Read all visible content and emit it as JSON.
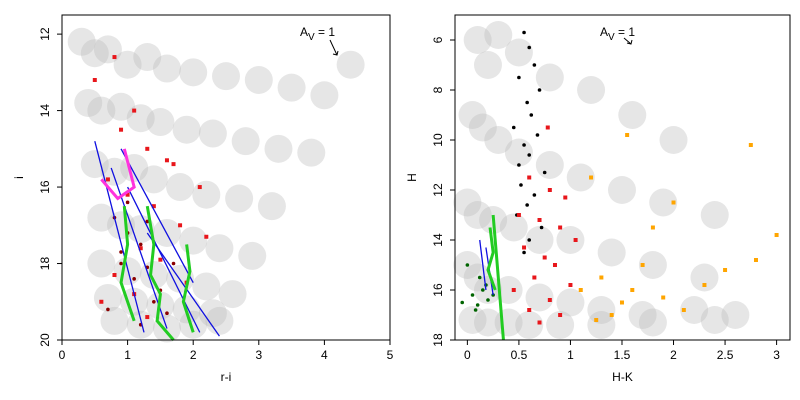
{
  "chart_data": [
    {
      "type": "scatter",
      "xlabel": "r-i",
      "ylabel": "i",
      "xlim": [
        0,
        5
      ],
      "ylim": [
        20,
        11.5
      ],
      "xticks": [
        0,
        1,
        2,
        3,
        4,
        5
      ],
      "yticks": [
        12,
        14,
        16,
        18,
        20
      ],
      "annotation": {
        "text": "A",
        "sub": "V",
        "rest": " = 1"
      },
      "series": [
        {
          "color": "#b8b8b8",
          "marker": "cloud",
          "x": [
            0.3,
            0.5,
            0.7,
            1.0,
            1.3,
            1.6,
            2.0,
            2.5,
            3.0,
            3.5,
            4.0,
            4.4,
            0.4,
            0.6,
            0.9,
            1.2,
            1.5,
            1.9,
            2.3,
            2.8,
            3.3,
            3.8,
            0.5,
            0.8,
            1.1,
            1.4,
            1.8,
            2.2,
            2.7,
            3.2,
            0.6,
            0.9,
            1.2,
            1.6,
            2.0,
            2.4,
            2.9,
            0.6,
            1.0,
            1.4,
            1.8,
            2.2,
            2.6,
            0.7,
            1.1,
            1.5,
            1.9,
            2.3,
            0.8,
            1.2,
            1.6,
            2.0,
            2.4
          ],
          "values": [
            12.2,
            12.5,
            12.4,
            12.8,
            12.6,
            12.9,
            13.0,
            13.1,
            13.2,
            13.4,
            13.6,
            12.8,
            13.8,
            14.0,
            13.9,
            14.2,
            14.3,
            14.5,
            14.6,
            14.8,
            15.0,
            15.1,
            15.4,
            15.6,
            15.5,
            15.8,
            16.0,
            16.2,
            16.3,
            16.5,
            16.8,
            17.0,
            17.1,
            17.2,
            17.4,
            17.6,
            17.8,
            18.0,
            18.2,
            18.3,
            18.4,
            18.6,
            18.8,
            18.9,
            19.0,
            19.1,
            19.2,
            19.3,
            19.5,
            19.6,
            19.7,
            19.6,
            19.5
          ]
        },
        {
          "color": "#e8161b",
          "marker": "square",
          "x": [
            0.5,
            0.8,
            1.1,
            0.9,
            1.3,
            1.6,
            0.7,
            1.0,
            1.4,
            1.8,
            2.2,
            1.2,
            1.5,
            0.8,
            1.9,
            1.1,
            2.1,
            1.7,
            0.6,
            1.3
          ],
          "values": [
            13.2,
            12.6,
            14.0,
            14.5,
            15.0,
            15.3,
            15.8,
            16.2,
            16.5,
            17.0,
            17.3,
            17.6,
            17.9,
            18.3,
            18.5,
            18.8,
            16.0,
            15.4,
            19.0,
            19.4
          ]
        },
        {
          "color": "#8b0000",
          "marker": "circle",
          "x": [
            0.8,
            1.0,
            1.2,
            0.9,
            1.1,
            1.3,
            1.5,
            0.7,
            1.4,
            1.6,
            1.0,
            1.2,
            0.9,
            1.3,
            1.7
          ],
          "values": [
            16.8,
            17.2,
            17.5,
            18.0,
            18.4,
            18.1,
            18.7,
            19.2,
            19.0,
            19.3,
            16.4,
            19.6,
            17.7,
            16.9,
            18.0
          ]
        },
        {
          "color": "#1010e0",
          "marker": "line",
          "x": [
            0.5,
            1.25
          ],
          "values": [
            14.8,
            19.8
          ]
        },
        {
          "color": "#1010e0",
          "marker": "line",
          "x": [
            0.75,
            1.6
          ],
          "values": [
            15.5,
            19.7
          ]
        },
        {
          "color": "#1010e0",
          "marker": "line",
          "x": [
            1.0,
            2.1
          ],
          "values": [
            16.0,
            19.8
          ]
        },
        {
          "color": "#1010e0",
          "marker": "line",
          "x": [
            1.3,
            2.4
          ],
          "values": [
            17.2,
            19.9
          ]
        },
        {
          "color": "#1010e0",
          "marker": "line",
          "x": [
            0.9,
            2.0
          ],
          "values": [
            15.0,
            18.5
          ]
        },
        {
          "color": "#22cc22",
          "marker": "thickline",
          "x": [
            1.3,
            1.4,
            1.35,
            1.5,
            1.45,
            1.7
          ],
          "values": [
            16.5,
            17.5,
            18.3,
            18.8,
            19.5,
            20
          ]
        },
        {
          "color": "#22cc22",
          "marker": "thickline",
          "x": [
            1.9,
            1.95,
            1.85,
            2.0
          ],
          "values": [
            17.5,
            18.2,
            19.0,
            19.8
          ]
        },
        {
          "color": "#22cc22",
          "marker": "thickline",
          "x": [
            0.95,
            1.0,
            0.9,
            1.1
          ],
          "values": [
            16.5,
            17.5,
            18.5,
            19.5
          ]
        },
        {
          "color": "#ff33dd",
          "marker": "thickline",
          "x": [
            0.6,
            0.85,
            1.1,
            0.95
          ],
          "values": [
            15.8,
            16.3,
            16.0,
            15.0
          ]
        }
      ]
    },
    {
      "type": "scatter",
      "xlabel": "H-K",
      "ylabel": "H",
      "xlim": [
        -0.12,
        3.13
      ],
      "ylim": [
        18,
        5
      ],
      "xticks": [
        0,
        0.5,
        1,
        1.5,
        2,
        2.5,
        3
      ],
      "yticks": [
        6,
        8,
        10,
        12,
        14,
        16,
        18
      ],
      "annotation": {
        "text": "A",
        "sub": "V",
        "rest": " = 1"
      },
      "series": [
        {
          "color": "#b8b8b8",
          "marker": "cloud",
          "x": [
            0.1,
            0.2,
            0.3,
            0.5,
            0.8,
            1.2,
            1.6,
            2.0,
            0.05,
            0.15,
            0.3,
            0.5,
            0.8,
            1.1,
            1.5,
            1.9,
            2.4,
            0.0,
            0.1,
            0.25,
            0.45,
            0.7,
            1.0,
            1.4,
            1.8,
            2.3,
            0.0,
            0.1,
            0.2,
            0.4,
            0.7,
            1.0,
            1.3,
            1.7,
            2.2,
            2.6,
            0.05,
            0.2,
            0.4,
            0.6,
            0.9,
            1.3,
            1.8,
            2.4
          ],
          "values": [
            6.0,
            7.0,
            5.8,
            6.5,
            7.5,
            8.0,
            9.0,
            10.0,
            9.0,
            9.5,
            10.0,
            10.5,
            11.0,
            11.5,
            12.0,
            12.5,
            13.0,
            12.5,
            13.0,
            13.2,
            13.5,
            14.0,
            14.0,
            14.5,
            15.0,
            15.5,
            15.0,
            15.5,
            16.0,
            16.0,
            16.3,
            16.5,
            16.8,
            17.0,
            16.8,
            17.0,
            17.2,
            17.3,
            17.3,
            17.4,
            17.4,
            17.4,
            17.3,
            17.2
          ]
        },
        {
          "color": "#000000",
          "marker": "circle",
          "x": [
            0.55,
            0.6,
            0.65,
            0.5,
            0.7,
            0.58,
            0.62,
            0.45,
            0.68,
            0.55,
            0.6,
            0.5,
            0.75,
            0.52,
            0.65,
            0.58,
            0.48,
            0.72,
            0.6,
            0.55
          ],
          "values": [
            5.7,
            6.3,
            7.0,
            7.5,
            8.0,
            8.5,
            9.0,
            9.5,
            9.8,
            10.2,
            10.6,
            11.0,
            11.3,
            11.8,
            12.2,
            12.6,
            13.0,
            13.5,
            14.0,
            14.5
          ]
        },
        {
          "color": "#e8161b",
          "marker": "square",
          "x": [
            0.6,
            0.8,
            0.95,
            0.5,
            0.7,
            0.9,
            1.05,
            0.55,
            0.75,
            0.85,
            0.65,
            1.0,
            0.45,
            0.8,
            0.6,
            0.9,
            0.7,
            0.78
          ],
          "values": [
            11.5,
            12.0,
            12.3,
            13.0,
            13.2,
            13.5,
            14.0,
            14.3,
            14.7,
            15.0,
            15.5,
            15.8,
            16.0,
            16.4,
            16.8,
            17.0,
            17.3,
            9.5
          ]
        },
        {
          "color": "#ffa500",
          "marker": "square",
          "x": [
            1.1,
            1.3,
            1.5,
            1.7,
            1.9,
            2.1,
            2.3,
            2.5,
            2.8,
            3.0,
            1.4,
            1.6,
            1.2,
            2.0,
            1.8,
            2.75,
            1.55,
            1.25
          ],
          "values": [
            16.0,
            15.5,
            16.5,
            15.0,
            16.3,
            16.8,
            15.8,
            15.2,
            14.8,
            13.8,
            17.0,
            16.0,
            11.5,
            12.5,
            13.5,
            10.2,
            9.8,
            17.2
          ]
        },
        {
          "color": "#006400",
          "marker": "circle",
          "x": [
            -0.05,
            0.05,
            0.1,
            0.15,
            0.2,
            0.0,
            0.12,
            0.25,
            0.08,
            0.18
          ],
          "values": [
            16.5,
            16.2,
            16.6,
            16.0,
            16.4,
            15.0,
            15.5,
            16.2,
            16.8,
            15.8
          ]
        },
        {
          "color": "#1010e0",
          "marker": "line",
          "x": [
            0.12,
            0.18
          ],
          "values": [
            14.0,
            16.0
          ]
        },
        {
          "color": "#1010e0",
          "marker": "line",
          "x": [
            0.18,
            0.25
          ],
          "values": [
            14.3,
            16.2
          ]
        },
        {
          "color": "#22cc22",
          "marker": "thickline",
          "x": [
            0.25,
            0.28,
            0.3,
            0.32,
            0.35
          ],
          "values": [
            13.0,
            14.5,
            15.5,
            16.5,
            18.0
          ]
        },
        {
          "color": "#22cc22",
          "marker": "thickline",
          "x": [
            0.22,
            0.25,
            0.2,
            0.27
          ],
          "values": [
            13.5,
            14.5,
            15.2,
            16.0
          ]
        }
      ]
    }
  ]
}
